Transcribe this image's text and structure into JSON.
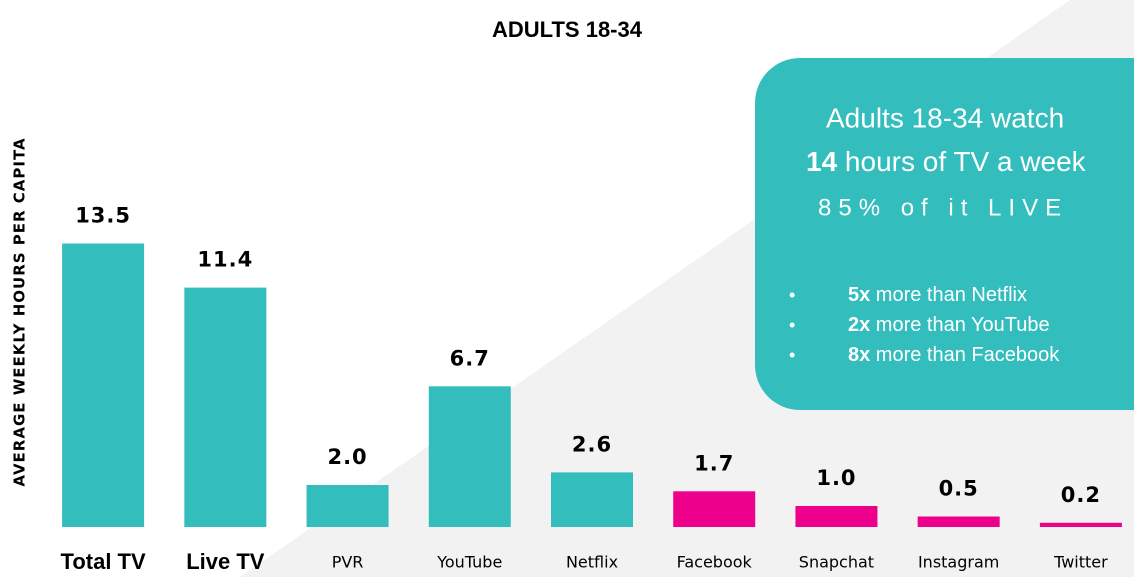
{
  "chart_data": {
    "type": "bar",
    "title": "ADULTS 18-34",
    "y_label": "AVERAGE WEEKLY HOURS PER CAPITA",
    "categories": [
      "Total TV",
      "Live TV",
      "PVR",
      "YouTube",
      "Netflix",
      "Facebook",
      "Snapchat",
      "Instagram",
      "Twitter"
    ],
    "values": [
      13.5,
      11.4,
      2.0,
      6.7,
      2.6,
      1.7,
      1.0,
      0.5,
      0.2
    ],
    "value_labels": [
      "13.5",
      "11.4",
      "2.0",
      "6.7",
      "2.6",
      "1.7",
      "1.0",
      "0.5",
      "0.2"
    ],
    "colors": [
      "#33bdbd",
      "#33bdbd",
      "#33bdbd",
      "#33bdbd",
      "#33bdbd",
      "#ec008c",
      "#ec008c",
      "#ec008c",
      "#ec008c"
    ],
    "ylim": [
      0,
      15
    ],
    "callout": {
      "line1": "Adults 18-34 watch",
      "line2_bold": "14",
      "line2": " hours of TV a week",
      "line3": "85% of it LIVE",
      "bullets": [
        {
          "bold": "5x",
          "text": " more than Netflix"
        },
        {
          "bold": "2x",
          "text": " more than YouTube"
        },
        {
          "bold": "8x",
          "text": " more than Facebook"
        }
      ]
    }
  }
}
